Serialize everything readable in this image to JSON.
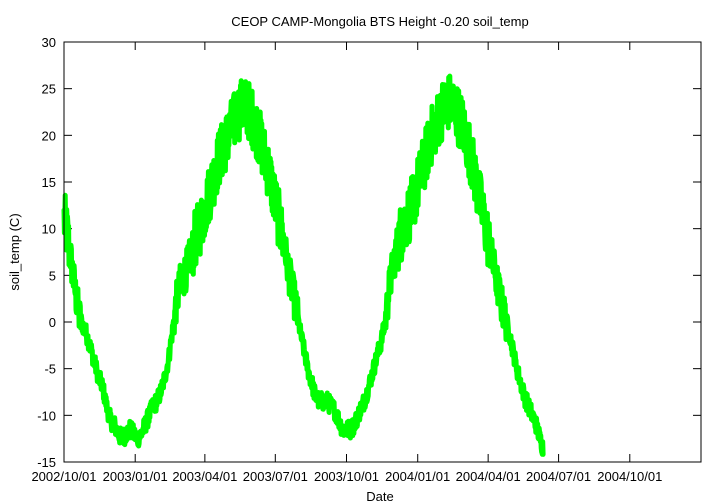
{
  "chart_data": {
    "type": "line",
    "title": "CEOP CAMP-Mongolia BTS Height -0.20 soil_temp",
    "xlabel": "Date",
    "ylabel": "soil_temp (C)",
    "ylim": [
      -15,
      30
    ],
    "y_ticks": [
      "-15",
      "-10",
      "-5",
      "0",
      "5",
      "10",
      "15",
      "20",
      "25",
      "30"
    ],
    "x_ticks": [
      "2002/10/01",
      "2003/01/01",
      "2003/04/01",
      "2003/07/01",
      "2003/10/01",
      "2004/01/01",
      "2004/04/01",
      "2004/07/01",
      "2004/10/01"
    ],
    "grid": false,
    "legend": "none",
    "series": [
      {
        "name": "soil_temp",
        "color": "#00ff00",
        "x_range": [
          "2002/10/01",
          "2004/12/31"
        ],
        "points": [
          [
            0,
            11.0
          ],
          [
            5,
            9.0
          ],
          [
            10,
            6.0
          ],
          [
            15,
            3.0
          ],
          [
            20,
            0.5
          ],
          [
            25,
            -0.5
          ],
          [
            30,
            -1.5
          ],
          [
            35,
            -3.0
          ],
          [
            40,
            -4.5
          ],
          [
            45,
            -6.0
          ],
          [
            50,
            -7.0
          ],
          [
            55,
            -9.0
          ],
          [
            60,
            -10.5
          ],
          [
            65,
            -11.0
          ],
          [
            70,
            -12.0
          ],
          [
            75,
            -12.5
          ],
          [
            80,
            -12.0
          ],
          [
            85,
            -11.5
          ],
          [
            90,
            -12.0
          ],
          [
            95,
            -12.5
          ],
          [
            100,
            -12.0
          ],
          [
            105,
            -11.0
          ],
          [
            110,
            -10.0
          ],
          [
            115,
            -9.0
          ],
          [
            120,
            -8.5
          ],
          [
            125,
            -7.5
          ],
          [
            130,
            -6.0
          ],
          [
            135,
            -4.0
          ],
          [
            140,
            -1.0
          ],
          [
            145,
            2.0
          ],
          [
            150,
            4.0
          ],
          [
            155,
            5.0
          ],
          [
            160,
            6.0
          ],
          [
            165,
            7.5
          ],
          [
            170,
            9.0
          ],
          [
            175,
            10.0
          ],
          [
            180,
            11.5
          ],
          [
            185,
            13.0
          ],
          [
            190,
            14.5
          ],
          [
            195,
            16.0
          ],
          [
            200,
            17.5
          ],
          [
            205,
            18.5
          ],
          [
            210,
            19.5
          ],
          [
            215,
            20.5
          ],
          [
            220,
            21.5
          ],
          [
            225,
            22.5
          ],
          [
            230,
            23.0
          ],
          [
            235,
            23.0
          ],
          [
            240,
            22.5
          ],
          [
            245,
            21.5
          ],
          [
            250,
            20.5
          ],
          [
            255,
            19.0
          ],
          [
            260,
            17.5
          ],
          [
            265,
            16.0
          ],
          [
            270,
            14.0
          ],
          [
            275,
            12.0
          ],
          [
            280,
            10.0
          ],
          [
            285,
            8.0
          ],
          [
            290,
            5.5
          ],
          [
            295,
            3.5
          ],
          [
            300,
            1.5
          ],
          [
            305,
            -1.0
          ],
          [
            310,
            -3.0
          ],
          [
            315,
            -5.0
          ],
          [
            320,
            -6.5
          ],
          [
            325,
            -8.0
          ],
          [
            330,
            -8.5
          ],
          [
            335,
            -8.5
          ],
          [
            340,
            -8.5
          ],
          [
            345,
            -9.0
          ],
          [
            350,
            -9.5
          ],
          [
            355,
            -10.5
          ],
          [
            360,
            -11.5
          ],
          [
            365,
            -11.5
          ],
          [
            370,
            -11.5
          ],
          [
            375,
            -11.0
          ],
          [
            380,
            -10.0
          ],
          [
            385,
            -9.0
          ],
          [
            390,
            -8.0
          ],
          [
            395,
            -6.5
          ],
          [
            400,
            -5.0
          ],
          [
            405,
            -3.5
          ],
          [
            410,
            -2.0
          ],
          [
            415,
            0.0
          ],
          [
            420,
            3.5
          ],
          [
            425,
            6.0
          ],
          [
            430,
            8.0
          ],
          [
            435,
            9.5
          ],
          [
            440,
            10.5
          ],
          [
            445,
            11.5
          ],
          [
            450,
            12.5
          ],
          [
            455,
            14.0
          ],
          [
            460,
            15.5
          ],
          [
            465,
            17.0
          ],
          [
            470,
            18.5
          ],
          [
            475,
            20.0
          ],
          [
            480,
            21.0
          ],
          [
            485,
            22.0
          ],
          [
            490,
            23.0
          ],
          [
            495,
            23.5
          ],
          [
            500,
            23.5
          ],
          [
            505,
            23.0
          ],
          [
            510,
            22.0
          ],
          [
            515,
            21.0
          ],
          [
            520,
            19.5
          ],
          [
            525,
            18.0
          ],
          [
            530,
            16.0
          ],
          [
            535,
            14.0
          ],
          [
            540,
            12.0
          ],
          [
            545,
            10.0
          ],
          [
            550,
            8.0
          ],
          [
            555,
            6.0
          ],
          [
            560,
            4.0
          ],
          [
            565,
            2.0
          ],
          [
            570,
            0.5
          ],
          [
            575,
            -1.0
          ],
          [
            580,
            -3.0
          ],
          [
            585,
            -5.0
          ],
          [
            590,
            -6.5
          ],
          [
            595,
            -8.0
          ],
          [
            600,
            -9.0
          ],
          [
            605,
            -10.0
          ],
          [
            610,
            -11.0
          ],
          [
            615,
            -12.5
          ],
          [
            619,
            -13.5
          ]
        ]
      }
    ]
  }
}
